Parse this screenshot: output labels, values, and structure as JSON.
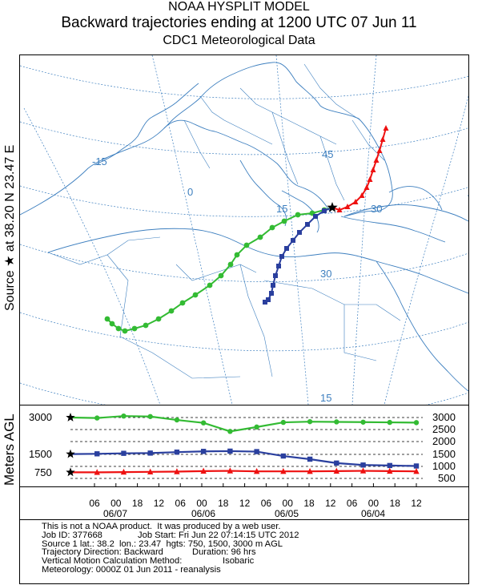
{
  "header": {
    "line1": "NOAA HYSPLIT MODEL",
    "line2": "Backward trajectories ending at 1200 UTC 07 Jun 11",
    "line3": "CDC1 Meteorological Data"
  },
  "side_label": "Source ★ at  38.20 N  23.47 E",
  "height_axis_label": "Meters AGL",
  "map": {
    "grid_labels": [
      "-15",
      "0",
      "15",
      "30",
      "45",
      "30",
      "30",
      "15",
      "45"
    ],
    "source": {
      "lat": 38.2,
      "lon": 23.47
    },
    "trajectories": [
      {
        "height_m": 3000,
        "color": "#33bb33",
        "marker": "circle"
      },
      {
        "height_m": 1500,
        "color": "#2a3f9e",
        "marker": "square"
      },
      {
        "height_m": 750,
        "color": "#ee1111",
        "marker": "triangle"
      }
    ]
  },
  "chart_data": {
    "type": "line",
    "x_tick_labels": [
      "06",
      "00",
      "18",
      "12",
      "06",
      "00",
      "18",
      "12",
      "06",
      "00",
      "18",
      "12",
      "06",
      "00",
      "18",
      "12"
    ],
    "date_labels": [
      "06/07",
      "06/06",
      "06/05",
      "06/04"
    ],
    "left_tick_labels": [
      "3000",
      "1500",
      "750"
    ],
    "right_tick_labels": [
      "3000",
      "2500",
      "2000",
      "1500",
      "1000",
      "500"
    ],
    "series": [
      {
        "color": "#33bb33",
        "values": [
          3000,
          2980,
          3060,
          3040,
          2900,
          2780,
          2430,
          2610,
          2800,
          2830,
          2820,
          2810,
          2800,
          2790
        ]
      },
      {
        "color": "#2a3f9e",
        "values": [
          1500,
          1510,
          1530,
          1540,
          1580,
          1610,
          1620,
          1600,
          1420,
          1290,
          1130,
          1050,
          1030,
          1010
        ]
      },
      {
        "color": "#ee1111",
        "values": [
          750,
          750,
          760,
          770,
          780,
          800,
          810,
          790,
          790,
          790,
          800,
          810,
          800,
          790
        ]
      }
    ]
  },
  "info": {
    "line1": "This is not a NOAA product.  It was produced by a web user.",
    "job_id": "Job ID: 377668",
    "job_start": "Job Start: Fri Jun 22 07:14:15 UTC 2012",
    "source": "Source 1 lat.: 38.2  lon.: 23.47  hgts: 750, 1500, 3000 m AGL",
    "direction": "Trajectory Direction: Backward",
    "duration": "Duration: 96 hrs",
    "vmotion": "Vertical Motion Calculation Method:",
    "vmotion_val": "Isobaric",
    "meteo": "Meteorology: 0000Z 01 Jun 2011 - reanalysis"
  }
}
